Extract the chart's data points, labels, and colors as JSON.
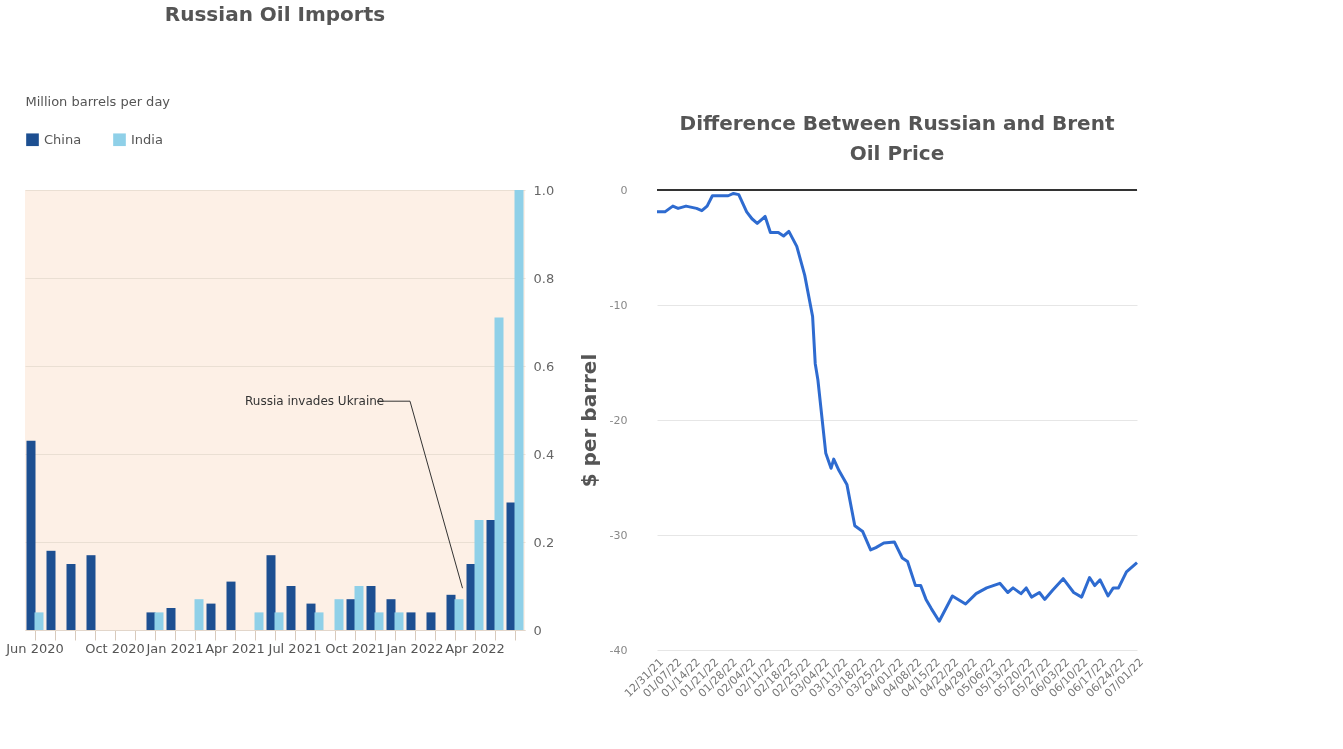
{
  "chart_data": [
    {
      "type": "bar",
      "title": "Russian Oil Imports",
      "ylabel": "Million barrels per day",
      "categories": [
        "Jun 2020",
        null,
        null,
        null,
        "Oct 2020",
        null,
        null,
        "Jan 2021",
        null,
        null,
        "Apr 2021",
        null,
        null,
        "Jul 2021",
        null,
        null,
        "Oct 2021",
        null,
        null,
        "Jan 2022",
        null,
        null,
        "Apr 2022",
        null,
        null
      ],
      "series": [
        {
          "name": "China",
          "color": "#1d4f91",
          "values": [
            0.43,
            0.18,
            0.15,
            0.17,
            0,
            0,
            0.04,
            0.05,
            0,
            0.06,
            0.11,
            0,
            0.17,
            0.1,
            0.06,
            0,
            0.07,
            0.1,
            0.07,
            0.04,
            0.04,
            0.08,
            0.15,
            0.25,
            0.29
          ]
        },
        {
          "name": "India",
          "color": "#8fd0e8",
          "values": [
            0.04,
            0,
            0,
            0,
            0,
            0,
            0.04,
            0,
            0.07,
            0,
            0,
            0.04,
            0.04,
            0,
            0.04,
            0.07,
            0.1,
            0.04,
            0.04,
            0,
            0,
            0.07,
            0.25,
            0.71,
            1.0
          ]
        }
      ],
      "ylim": [
        0,
        1.0
      ],
      "yticks": [
        0,
        0.2,
        0.4,
        0.6,
        0.8,
        {
          "value": 1.0,
          "label": "1.0"
        }
      ],
      "grid": "y",
      "legend": "top left",
      "annotations": [
        "Russia invades Ukraine"
      ]
    },
    {
      "type": "line",
      "title": "Difference Between Russian and Brent Oil Price",
      "ylabel": "$ per barrel",
      "series": [
        {
          "color": "#2e6bd0",
          "x": [
            "2021-12-31",
            "2022-01-03",
            "2022-01-06",
            "2022-01-08",
            "2022-01-11",
            "2022-01-15",
            "2022-01-17",
            "2022-01-19",
            "2022-01-21",
            "2022-01-27",
            "2022-01-29",
            "2022-01-31",
            "2022-02-03",
            "2022-02-05",
            "2022-02-07",
            "2022-02-10",
            "2022-02-12",
            "2022-02-15",
            "2022-02-17",
            "2022-02-19",
            "2022-02-22",
            "2022-02-25",
            "2022-02-28",
            "2022-03-01",
            "2022-03-02",
            "2022-03-05",
            "2022-03-07",
            "2022-03-08",
            "2022-03-10",
            "2022-03-13",
            "2022-03-16",
            "2022-03-19",
            "2022-03-22",
            "2022-03-24",
            "2022-03-27",
            "2022-03-31",
            "2022-04-03",
            "2022-04-05",
            "2022-04-08",
            "2022-04-10",
            "2022-04-12",
            "2022-04-14",
            "2022-04-17",
            "2022-04-22",
            "2022-04-27",
            "2022-05-01",
            "2022-05-05",
            "2022-05-10",
            "2022-05-13",
            "2022-05-15",
            "2022-05-18",
            "2022-05-20",
            "2022-05-22",
            "2022-05-25",
            "2022-05-27",
            "2022-05-30",
            "2022-06-03",
            "2022-06-07",
            "2022-06-10",
            "2022-06-13",
            "2022-06-15",
            "2022-06-17",
            "2022-06-20",
            "2022-06-22",
            "2022-06-24",
            "2022-06-27",
            "2022-07-01"
          ],
          "values": [
            -1.9,
            -1.9,
            -1.4,
            -1.6,
            -1.4,
            -1.6,
            -1.8,
            -1.4,
            -0.5,
            -0.5,
            -0.3,
            -0.4,
            -1.9,
            -2.5,
            -2.9,
            -2.3,
            -3.7,
            -3.7,
            -4.0,
            -3.6,
            -4.9,
            -7.4,
            -11.0,
            -15.1,
            -16.5,
            -22.9,
            -24.2,
            -23.4,
            -24.4,
            -25.6,
            -29.2,
            -29.7,
            -31.3,
            -31.1,
            -30.7,
            -30.6,
            -32.0,
            -32.3,
            -34.4,
            -34.4,
            -35.6,
            -36.4,
            -37.5,
            -35.3,
            -36.0,
            -35.1,
            -34.6,
            -34.2,
            -35.0,
            -34.6,
            -35.1,
            -34.6,
            -35.4,
            -35.0,
            -35.6,
            -34.8,
            -33.8,
            -35.0,
            -35.4,
            -33.7,
            -34.4,
            -33.9,
            -35.3,
            -34.6,
            -34.6,
            -33.2,
            -32.4
          ]
        }
      ],
      "xlim": [
        "2021-12-31",
        "2022-07-01"
      ],
      "xticks": [
        {
          "value": "2021-12-31",
          "label": "12/31/21"
        },
        {
          "value": "2022-01-07",
          "label": "01/07/22"
        },
        {
          "value": "2022-01-14",
          "label": "01/14/22"
        },
        {
          "value": "2022-01-21",
          "label": "01/21/22"
        },
        {
          "value": "2022-01-28",
          "label": "01/28/22"
        },
        {
          "value": "2022-02-04",
          "label": "02/04/22"
        },
        {
          "value": "2022-02-11",
          "label": "02/11/22"
        },
        {
          "value": "2022-02-18",
          "label": "02/18/22"
        },
        {
          "value": "2022-02-25",
          "label": "02/25/22"
        },
        {
          "value": "2022-03-04",
          "label": "03/04/22"
        },
        {
          "value": "2022-03-11",
          "label": "03/11/22"
        },
        {
          "value": "2022-03-18",
          "label": "03/18/22"
        },
        {
          "value": "2022-03-25",
          "label": "03/25/22"
        },
        {
          "value": "2022-04-01",
          "label": "04/01/22"
        },
        {
          "value": "2022-04-08",
          "label": "04/08/22"
        },
        {
          "value": "2022-04-15",
          "label": "04/15/22"
        },
        {
          "value": "2022-04-22",
          "label": "04/22/22"
        },
        {
          "value": "2022-04-29",
          "label": "04/29/22"
        },
        {
          "value": "2022-05-06",
          "label": "05/06/22"
        },
        {
          "value": "2022-05-13",
          "label": "05/13/22"
        },
        {
          "value": "2022-05-20",
          "label": "05/20/22"
        },
        {
          "value": "2022-05-27",
          "label": "05/27/22"
        },
        {
          "value": "2022-06-03",
          "label": "06/03/22"
        },
        {
          "value": "2022-06-10",
          "label": "06/10/22"
        },
        {
          "value": "2022-06-17",
          "label": "06/17/22"
        },
        {
          "value": "2022-06-24",
          "label": "06/24/22"
        },
        {
          "value": "2022-07-01",
          "label": "07/01/22"
        }
      ],
      "ylim": [
        -40,
        0
      ],
      "yticks": [
        0,
        -10,
        -20,
        -30,
        -40
      ],
      "grid": "y",
      "marker": "none",
      "line_style": "solid",
      "ref_lines": [
        {
          "axis": "y",
          "value": 0,
          "color": "#333333"
        }
      ]
    }
  ]
}
